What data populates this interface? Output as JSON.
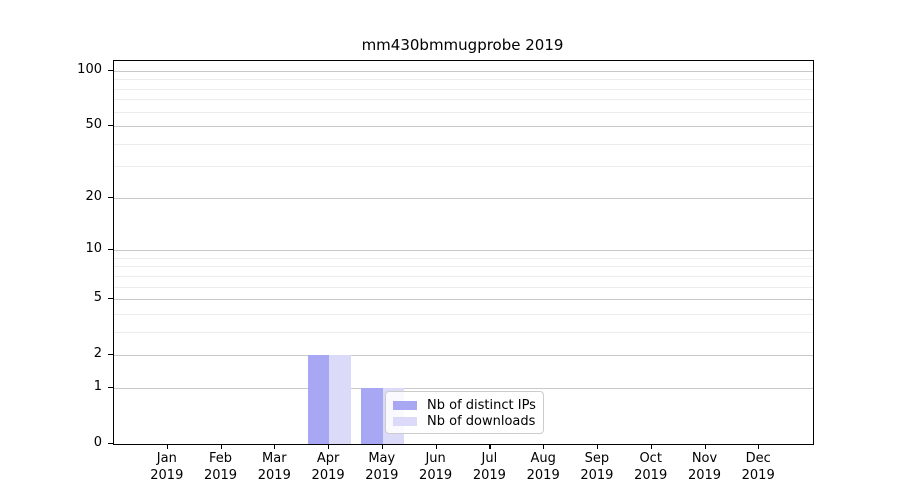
{
  "title": "mm430bmmugprobe 2019",
  "chart_data": {
    "type": "bar",
    "title": "mm430bmmugprobe 2019",
    "x_months": [
      "Jan",
      "Feb",
      "Mar",
      "Apr",
      "May",
      "Jun",
      "Jul",
      "Aug",
      "Sep",
      "Oct",
      "Nov",
      "Dec"
    ],
    "x_year": "2019",
    "categories": [
      "Jan 2019",
      "Feb 2019",
      "Mar 2019",
      "Apr 2019",
      "May 2019",
      "Jun 2019",
      "Jul 2019",
      "Aug 2019",
      "Sep 2019",
      "Oct 2019",
      "Nov 2019",
      "Dec 2019"
    ],
    "series": [
      {
        "name": "Nb of distinct IPs",
        "color": "#a7a7f3",
        "values": [
          0,
          0,
          0,
          2,
          1,
          0,
          0,
          0,
          0,
          0,
          0,
          0
        ]
      },
      {
        "name": "Nb of downloads",
        "color": "#dbdbf9",
        "values": [
          0,
          0,
          0,
          2,
          1,
          0,
          0,
          0,
          0,
          0,
          0,
          0
        ]
      }
    ],
    "yscale": "log1p",
    "ylim": [
      0,
      113
    ],
    "yticks": [
      0,
      1,
      2,
      5,
      10,
      20,
      50,
      100
    ],
    "yminorticks": [
      3,
      4,
      6,
      7,
      8,
      9,
      30,
      40,
      60,
      70,
      80,
      90
    ],
    "grid": true,
    "legend_position": "inside-lower-center",
    "colors": {
      "major_grid": "#c9c9c9",
      "minor_grid": "#ededed",
      "spine": "#000000",
      "background": "#ffffff"
    }
  }
}
